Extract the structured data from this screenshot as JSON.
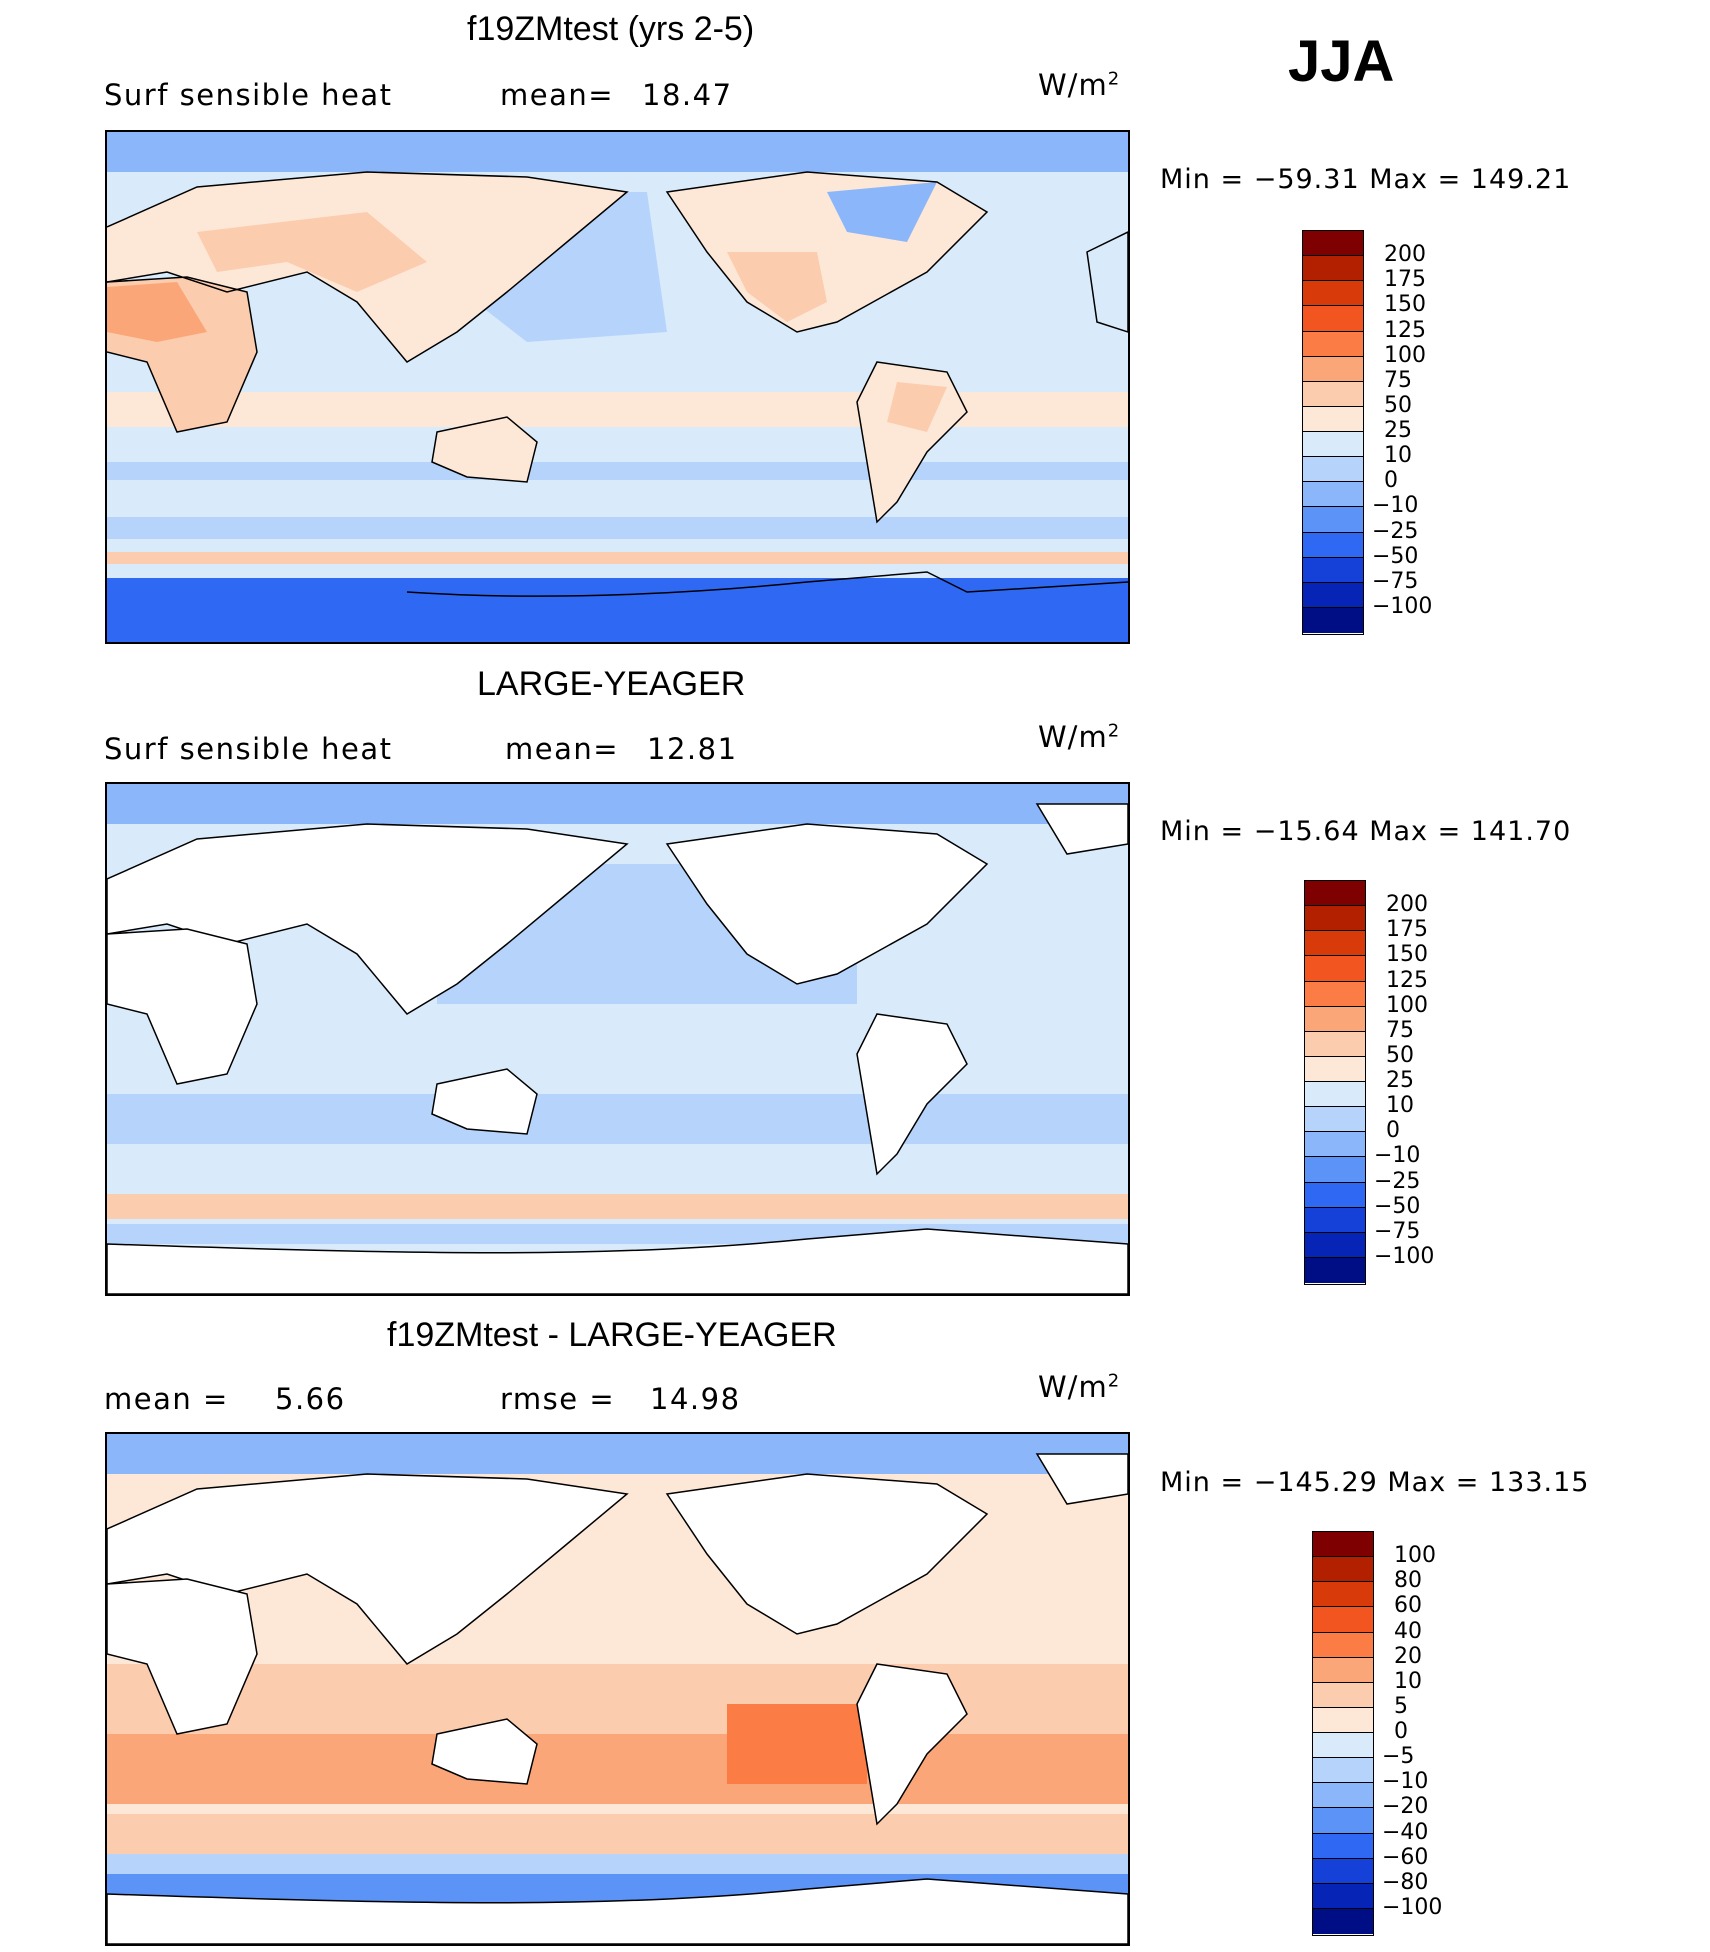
{
  "season": "JJA",
  "panels": [
    {
      "title": "f19ZMtest (yrs 2-5)",
      "variable": "Surf  sensible  heat",
      "stat1_label": "mean=",
      "stat1_value": "18.47",
      "stat2_label": "",
      "stat2_value": "",
      "units": "W/m",
      "units_sup": "2",
      "minmax": "Min  =  −59.31  Max  =  149.21",
      "levels": [
        "200",
        "175",
        "150",
        "125",
        "100",
        "75",
        "50",
        "25",
        "10",
        "0",
        "−10",
        "−25",
        "−50",
        "−75",
        "−100"
      ],
      "colors": [
        "#7f0000",
        "#b22000",
        "#d83a0a",
        "#f25520",
        "#fb7d45",
        "#fba679",
        "#fcccae",
        "#fde8d8",
        "#d9ebfb",
        "#b6d4fb",
        "#8bb6fa",
        "#5b93f6",
        "#2f68f2",
        "#1641d8",
        "#0624b6",
        "#000e85"
      ]
    },
    {
      "title": "LARGE-YEAGER",
      "variable": "Surf  sensible  heat",
      "stat1_label": "mean=",
      "stat1_value": "12.81",
      "stat2_label": "",
      "stat2_value": "",
      "units": "W/m",
      "units_sup": "2",
      "minmax": "Min  =  −15.64  Max  =  141.70",
      "levels": [
        "200",
        "175",
        "150",
        "125",
        "100",
        "75",
        "50",
        "25",
        "10",
        "0",
        "−10",
        "−25",
        "−50",
        "−75",
        "−100"
      ],
      "colors": [
        "#7f0000",
        "#b22000",
        "#d83a0a",
        "#f25520",
        "#fb7d45",
        "#fba679",
        "#fcccae",
        "#fde8d8",
        "#d9ebfb",
        "#b6d4fb",
        "#8bb6fa",
        "#5b93f6",
        "#2f68f2",
        "#1641d8",
        "#0624b6",
        "#000e85"
      ]
    },
    {
      "title": "f19ZMtest - LARGE-YEAGER",
      "variable": "",
      "stat1_label": "mean  =",
      "stat1_value": "5.66",
      "stat2_label": "rmse  =",
      "stat2_value": "14.98",
      "units": "W/m",
      "units_sup": "2",
      "minmax": "Min  =  −145.29  Max  =  133.15",
      "levels": [
        "100",
        "80",
        "60",
        "40",
        "20",
        "10",
        "5",
        "0",
        "−5",
        "−10",
        "−20",
        "−40",
        "−60",
        "−80",
        "−100"
      ],
      "colors": [
        "#7f0000",
        "#b22000",
        "#d83a0a",
        "#f25520",
        "#fb7d45",
        "#fba679",
        "#fcccae",
        "#fde8d8",
        "#d9ebfb",
        "#b6d4fb",
        "#8bb6fa",
        "#5b93f6",
        "#2f68f2",
        "#1641d8",
        "#0624b6",
        "#000e85"
      ]
    }
  ]
}
